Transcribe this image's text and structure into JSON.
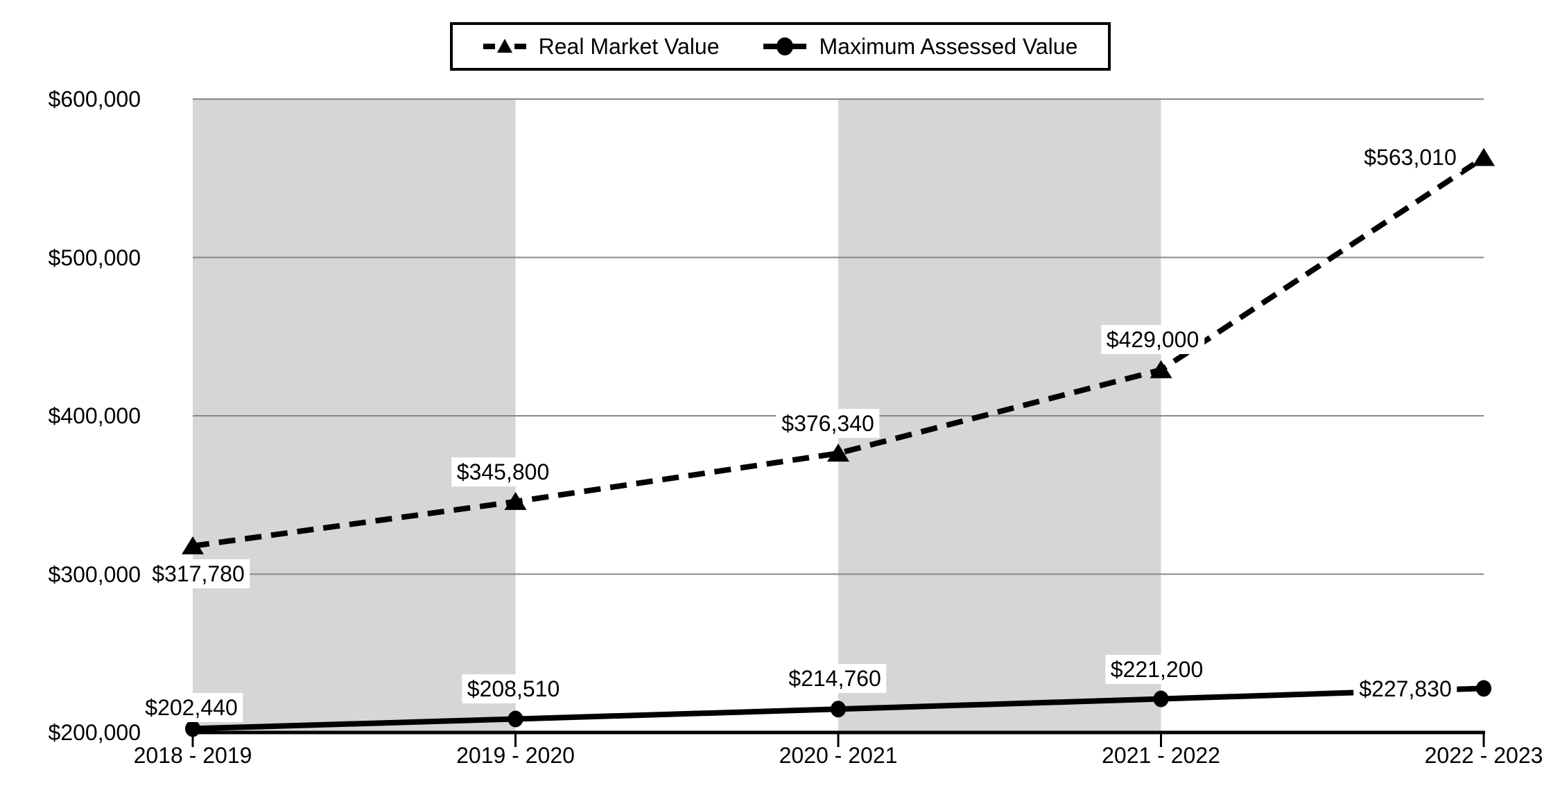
{
  "chart_data": {
    "type": "line",
    "title": "",
    "categories": [
      "2018 - 2019",
      "2019 - 2020",
      "2020 - 2021",
      "2021 - 2022",
      "2022 - 2023"
    ],
    "y_axis": {
      "tick_labels": [
        "$600,000",
        "$500,000",
        "$400,000",
        "$300,000",
        "$200,000"
      ],
      "tick_values": [
        600000,
        500000,
        400000,
        300000,
        200000
      ],
      "min": 200000,
      "max": 600000,
      "step": 100000
    },
    "series": [
      {
        "name": "Real Market Value",
        "line_style": "dashed",
        "marker": "triangle",
        "values": [
          317780,
          345800,
          376340,
          429000,
          563010
        ],
        "labels": [
          "$317,780",
          "$345,800",
          "$376,340",
          "$429,000",
          "$563,010"
        ]
      },
      {
        "name": "Maximum Assessed Value",
        "line_style": "solid",
        "marker": "circle",
        "values": [
          202440,
          208510,
          214760,
          221200,
          227830
        ],
        "labels": [
          "$202,440",
          "$208,510",
          "$214,760",
          "$221,200",
          "$227,830"
        ]
      }
    ],
    "shaded_band_intervals": [
      [
        0,
        1
      ],
      [
        2,
        3
      ]
    ],
    "legend_position": "top",
    "grid": true,
    "colors": {
      "line": "#000000",
      "band": "#D6D6D6",
      "gridline": "#878787",
      "axis": "#000000",
      "text": "#000000",
      "background": "#FFFFFF"
    }
  }
}
